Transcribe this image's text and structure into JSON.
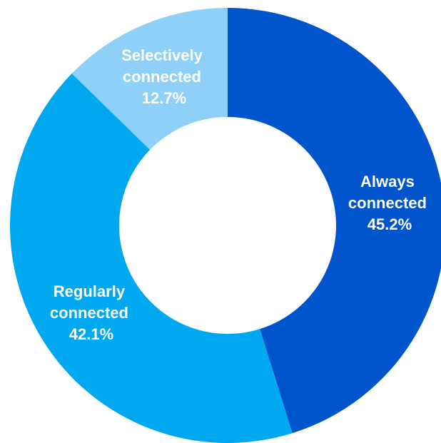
{
  "chart_data": {
    "type": "pie",
    "variant": "donut",
    "title": "",
    "legend": "none",
    "slices": [
      {
        "label_lines": [
          "Always",
          "connected"
        ],
        "value": 45.2,
        "value_text": "45.2%",
        "color": "#0055cc"
      },
      {
        "label_lines": [
          "Regularly",
          "connected"
        ],
        "value": 42.1,
        "value_text": "42.1%",
        "color": "#00a8f0"
      },
      {
        "label_lines": [
          "Selectively",
          "connected"
        ],
        "value": 12.7,
        "value_text": "12.7%",
        "color": "#8fd0f8"
      }
    ]
  }
}
